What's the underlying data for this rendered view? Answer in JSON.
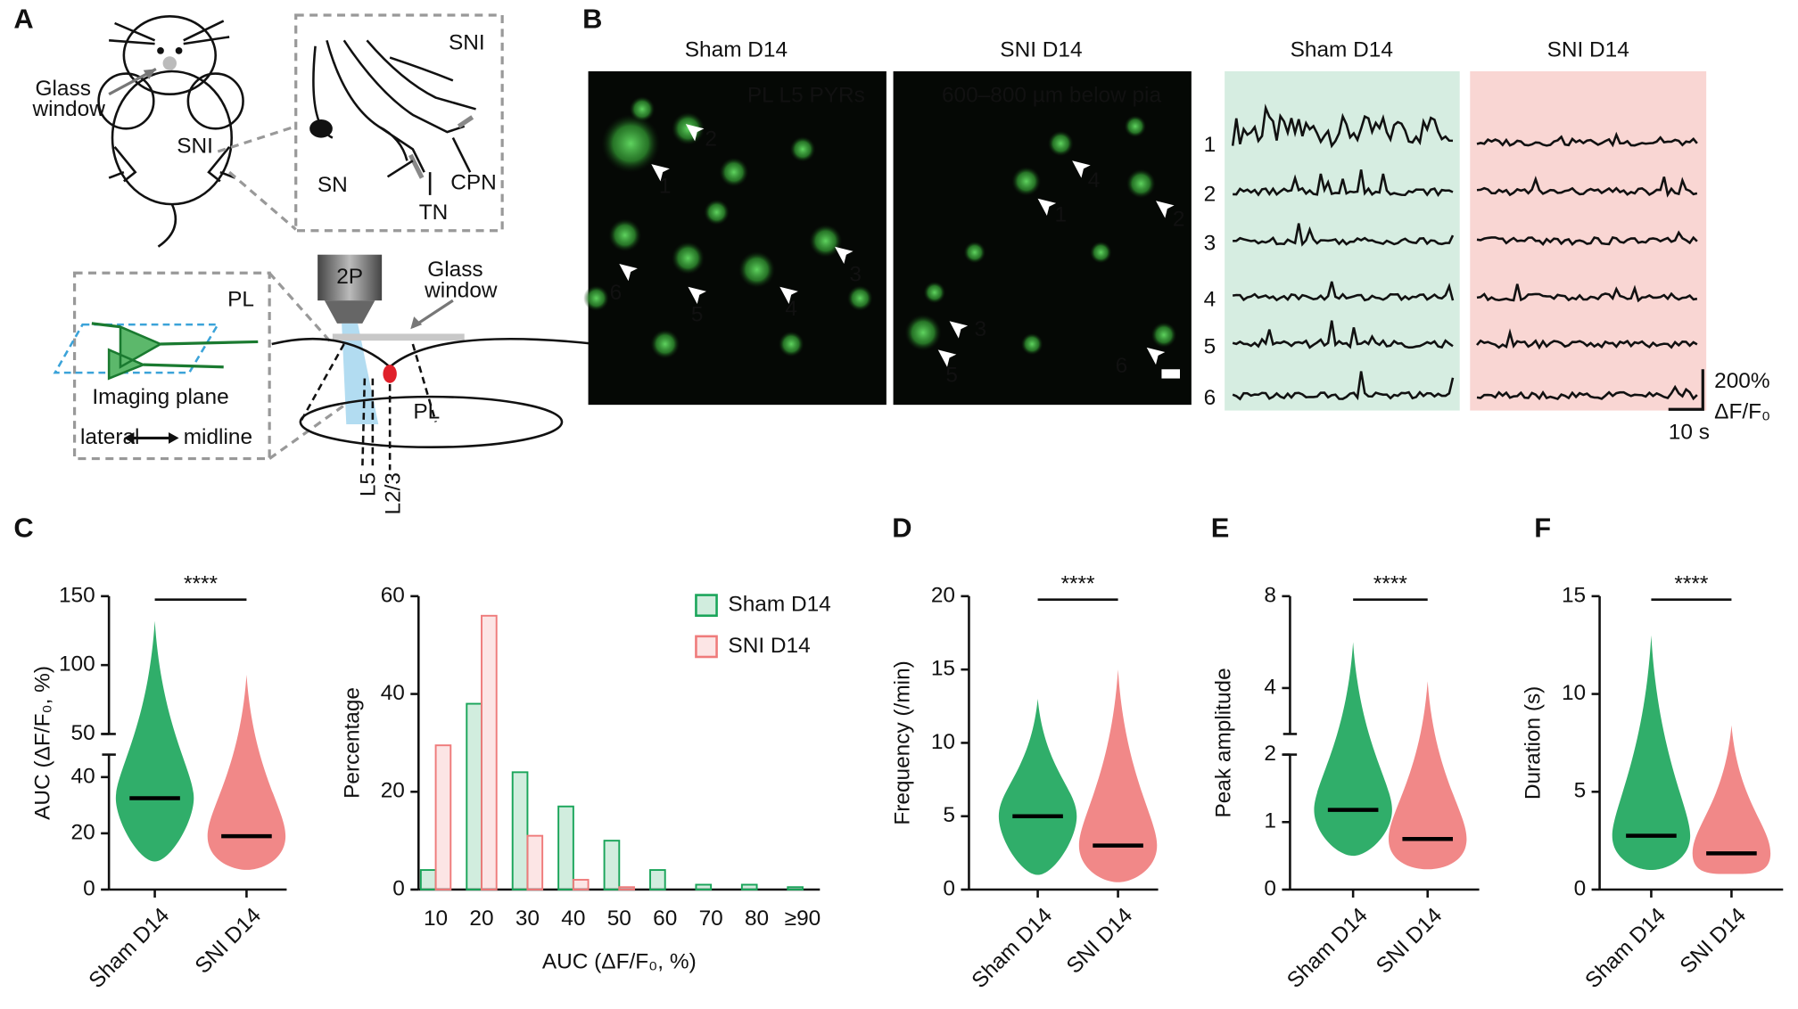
{
  "panel_labels": [
    "A",
    "B",
    "C",
    "D",
    "E",
    "F"
  ],
  "diagram": {
    "glass_window_1": [
      "Glass",
      "window"
    ],
    "sni_mouse": "SNI",
    "sni_box": "SNI",
    "nerves": [
      "SN",
      "TN",
      "CPN"
    ],
    "objective": "2P",
    "glass_window_2": [
      "Glass",
      "window"
    ],
    "pl_inset": "PL",
    "pl_brain": "PL",
    "imaging_plane": "Imaging plane",
    "lateral": "lateral",
    "midline": "midline",
    "layers": [
      "L5",
      "L2/3"
    ]
  },
  "imaging": {
    "titles": [
      "Sham D14",
      "SNI D14",
      "Sham D14",
      "SNI D14"
    ],
    "region": "PL L5 PYRs",
    "depth": "600–800 µm below pia",
    "cells_sham": [
      "1",
      "2",
      "3",
      "4",
      "5",
      "6"
    ],
    "cells_sni": [
      "1",
      "2",
      "3",
      "4",
      "5",
      "6"
    ],
    "trace_numbers": [
      "1",
      "2",
      "3",
      "4",
      "5",
      "6"
    ],
    "scale_y": "200%",
    "scale_unit": "ΔF/F₀",
    "scale_x": "10 s"
  },
  "chart_data": [
    {
      "type": "dot",
      "categories": [
        "Sham D14",
        "SNI D14"
      ],
      "ylabel": "AUC (ΔF/F₀, %)",
      "ylim": [
        0,
        150
      ],
      "ybreak": [
        48,
        50
      ],
      "yticks": [
        0,
        20,
        40,
        50,
        100,
        150
      ],
      "colors": [
        "#1aa55a",
        "#ef7b7b"
      ],
      "means": [
        32.5,
        19
      ],
      "ranges": [
        [
          10,
          132
        ],
        [
          7,
          93
        ]
      ],
      "significance": "****"
    },
    {
      "type": "bar",
      "categories": [
        "10",
        "20",
        "30",
        "40",
        "50",
        "60",
        "70",
        "80",
        "≥90"
      ],
      "xlabel": "AUC (ΔF/F₀, %)",
      "ylabel": "Percentage",
      "ylim": [
        0,
        60
      ],
      "yticks": [
        0,
        20,
        40,
        60
      ],
      "legend": "upper right",
      "series": [
        {
          "name": "Sham D14",
          "color": "#1aa55a",
          "values": [
            4,
            38,
            24,
            17,
            10,
            4,
            1,
            1,
            0.5
          ]
        },
        {
          "name": "SNI D14",
          "color": "#ef7b7b",
          "values": [
            29.5,
            56,
            11,
            2,
            0.5,
            0,
            0,
            0,
            0
          ]
        }
      ]
    },
    {
      "type": "dot",
      "categories": [
        "Sham D14",
        "SNI D14"
      ],
      "ylabel": "Frequency (/min)",
      "ylim": [
        0,
        20
      ],
      "yticks": [
        0,
        5,
        10,
        15,
        20
      ],
      "colors": [
        "#1aa55a",
        "#ef7b7b"
      ],
      "means": [
        5.0,
        3.0
      ],
      "ranges": [
        [
          1,
          13
        ],
        [
          0.5,
          15
        ]
      ],
      "significance": "****"
    },
    {
      "type": "dot",
      "categories": [
        "Sham D14",
        "SNI D14"
      ],
      "ylabel": "Peak amplitude",
      "ylim": [
        0,
        8
      ],
      "ybreak": [
        2,
        2
      ],
      "yticks": [
        0,
        1,
        2,
        4,
        8
      ],
      "colors": [
        "#1aa55a",
        "#ef7b7b"
      ],
      "means": [
        1.18,
        0.75
      ],
      "ranges": [
        [
          0.5,
          6
        ],
        [
          0.3,
          4.3
        ]
      ],
      "significance": "****"
    },
    {
      "type": "dot",
      "categories": [
        "Sham D14",
        "SNI D14"
      ],
      "ylabel": "Duration (s)",
      "ylim": [
        0,
        15
      ],
      "yticks": [
        0,
        5,
        10,
        15
      ],
      "colors": [
        "#1aa55a",
        "#ef7b7b"
      ],
      "means": [
        2.75,
        1.85
      ],
      "ranges": [
        [
          1,
          13
        ],
        [
          0.8,
          8.4
        ]
      ],
      "significance": "****"
    }
  ]
}
